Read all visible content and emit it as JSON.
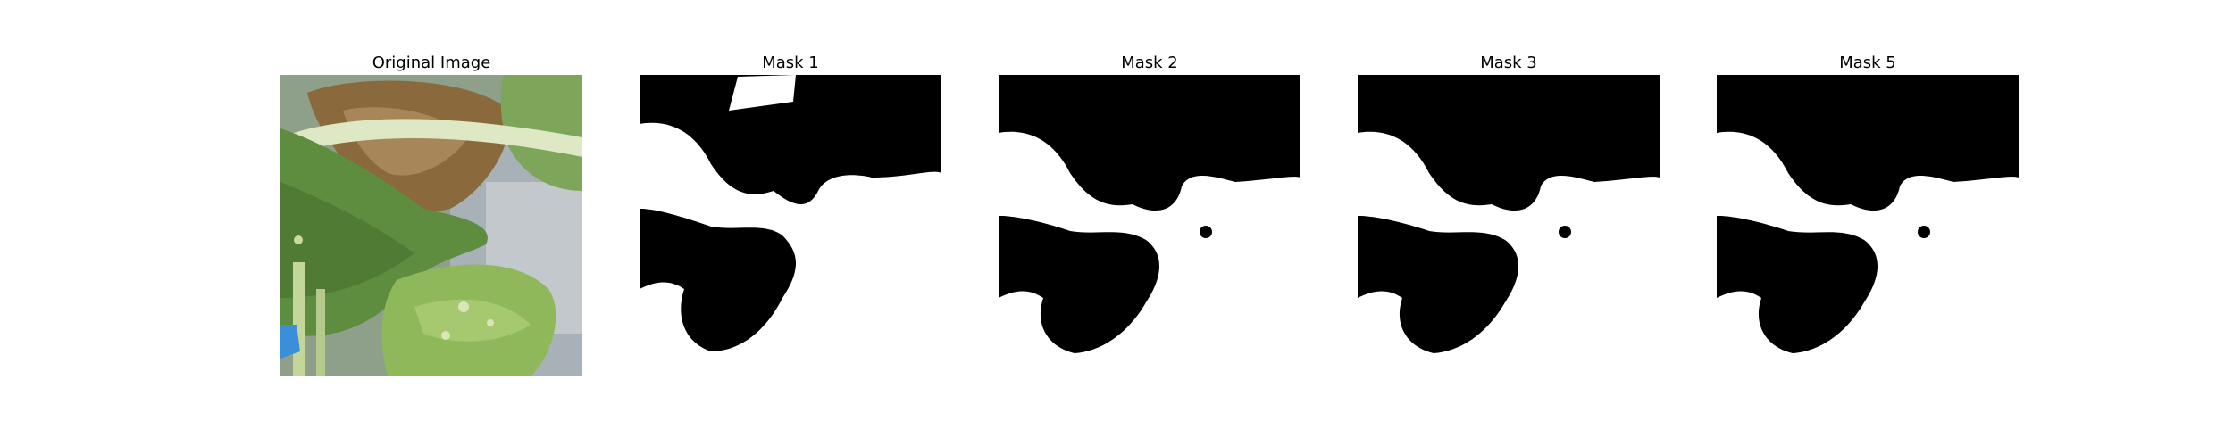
{
  "panels": [
    {
      "title": "Original Image",
      "kind": "photo"
    },
    {
      "title": "Mask 1",
      "kind": "mask"
    },
    {
      "title": "Mask 2",
      "kind": "mask"
    },
    {
      "title": "Mask 3",
      "kind": "mask"
    },
    {
      "title": "Mask 5",
      "kind": "mask"
    }
  ],
  "colors": {
    "background": "#ffffff",
    "mask_foreground": "#ffffff",
    "mask_background": "#000000",
    "leaf_green": "#6f9a4a",
    "dry_leaf_brown": "#8a6a3c",
    "stem_pale": "#dfe8c4",
    "sky_gray": "#a9b1b8",
    "accent_blue": "#3a8fd8"
  }
}
